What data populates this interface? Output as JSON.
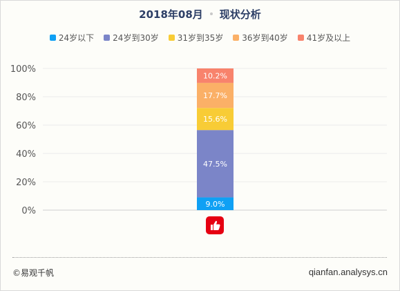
{
  "header": {
    "period": "2018年08月",
    "subtitle": "现状分析"
  },
  "chart_data": {
    "type": "bar",
    "stacked": true,
    "categories": [
      ""
    ],
    "series": [
      {
        "name": "24岁以下",
        "values": [
          9.0
        ],
        "color": "#0fa0f4",
        "label": "9.0%"
      },
      {
        "name": "24岁到30岁",
        "values": [
          47.5
        ],
        "color": "#7b85c8",
        "label": "47.5%"
      },
      {
        "name": "31岁到35岁",
        "values": [
          15.6
        ],
        "color": "#f8cc36",
        "label": "15.6%"
      },
      {
        "name": "36岁到40岁",
        "values": [
          17.7
        ],
        "color": "#fbb067",
        "label": "17.7%"
      },
      {
        "name": "41岁及以上",
        "values": [
          10.2
        ],
        "color": "#f8836c",
        "label": "10.2%"
      }
    ],
    "yticks": [
      "0%",
      "20%",
      "40%",
      "60%",
      "80%",
      "100%"
    ],
    "ylim": [
      0,
      100
    ],
    "grid": true,
    "legend_position": "top",
    "category_icon": "thumbs-up-app-icon",
    "category_icon_color": "#e60012"
  },
  "footer": {
    "copyright": "©易观千帆",
    "site": "qianfan.analysys.cn"
  }
}
